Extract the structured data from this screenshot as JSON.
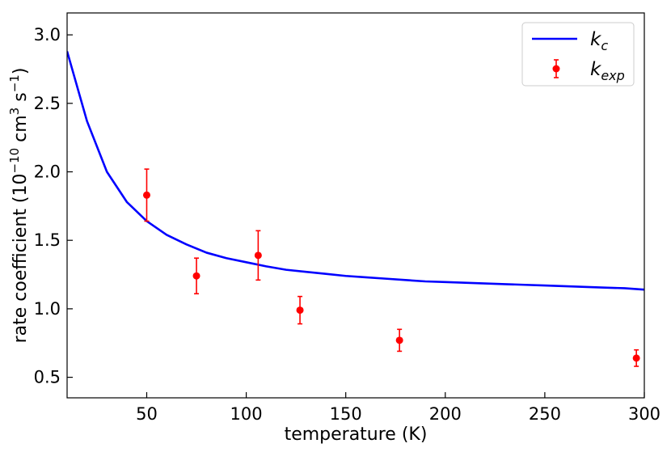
{
  "chart_data": {
    "type": "line",
    "xlabel": "temperature (K)",
    "ylabel": {
      "prefix": "rate coefficient (10",
      "exp1": "−10",
      "mid": " cm",
      "exp2": "3",
      "mid2": " s",
      "exp3": "−1",
      "suffix": ")"
    },
    "xlim": [
      10,
      300
    ],
    "ylim": [
      0.35,
      3.16
    ],
    "xticks": [
      50,
      100,
      150,
      200,
      250,
      300
    ],
    "yticks": [
      0.5,
      1.0,
      1.5,
      2.0,
      2.5,
      3.0
    ],
    "xtick_labels": [
      "50",
      "100",
      "150",
      "200",
      "250",
      "300"
    ],
    "ytick_labels": [
      "0.5",
      "1.0",
      "1.5",
      "2.0",
      "2.5",
      "3.0"
    ],
    "grid": false,
    "legend_position": "top-right",
    "series": [
      {
        "name": "k_c",
        "legend_main": "k",
        "legend_sub": "c",
        "kind": "line",
        "color": "#0000ff",
        "x": [
          10,
          20,
          30,
          40,
          50,
          60,
          70,
          80,
          90,
          100,
          110,
          120,
          130,
          140,
          150,
          160,
          170,
          180,
          190,
          200,
          210,
          220,
          230,
          240,
          250,
          260,
          270,
          280,
          290,
          300
        ],
        "y": [
          2.88,
          2.37,
          2.0,
          1.78,
          1.64,
          1.54,
          1.47,
          1.41,
          1.37,
          1.34,
          1.31,
          1.285,
          1.27,
          1.255,
          1.24,
          1.23,
          1.22,
          1.21,
          1.2,
          1.195,
          1.19,
          1.185,
          1.18,
          1.175,
          1.17,
          1.165,
          1.16,
          1.155,
          1.15,
          1.14
        ]
      },
      {
        "name": "k_exp",
        "legend_main": "k",
        "legend_sub": "exp",
        "kind": "errorbar",
        "color": "#ff0000",
        "points": [
          {
            "x": 50,
            "y": 1.83,
            "err": 0.19
          },
          {
            "x": 75,
            "y": 1.24,
            "err": 0.13
          },
          {
            "x": 106,
            "y": 1.39,
            "err": 0.18
          },
          {
            "x": 127,
            "y": 0.99,
            "err": 0.1
          },
          {
            "x": 177,
            "y": 0.77,
            "err": 0.08
          },
          {
            "x": 296,
            "y": 0.64,
            "err": 0.06
          }
        ]
      }
    ]
  }
}
